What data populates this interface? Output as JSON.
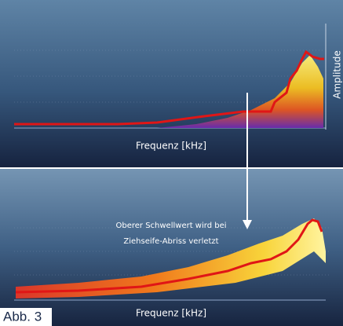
{
  "top_panel": {
    "y_axis_label": "Amplitude",
    "x_axis_label": "Frequenz [kHz]"
  },
  "bottom_panel": {
    "annotation": [
      "Oberer Schwellwert wird bei",
      "Ziehseife-Abriss verletzt"
    ],
    "x_axis_label": "Frequenz [kHz]"
  },
  "caption": "Abb. 3"
}
